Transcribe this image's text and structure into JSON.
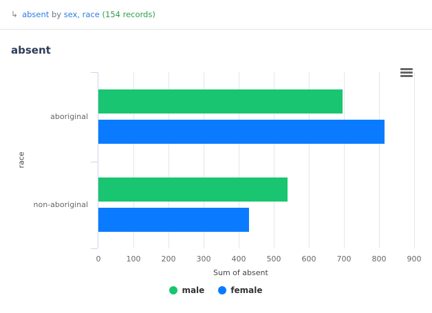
{
  "breadcrumb": {
    "arrow_icon": "return-arrow-icon",
    "measure": "absent",
    "by": "by",
    "dimensions": "sex, race",
    "records": "(154 records)"
  },
  "chart_title": "absent",
  "menu_icon": "hamburger-menu-icon",
  "colors": {
    "male": "#19c570",
    "female": "#0a7bff"
  },
  "chart_data": {
    "type": "bar",
    "orientation": "horizontal",
    "title": "absent",
    "categories": [
      "aboriginal",
      "non-aboriginal"
    ],
    "series": [
      {
        "name": "male",
        "color": "#19c570",
        "values": [
          696,
          540
        ]
      },
      {
        "name": "female",
        "color": "#0a7bff",
        "values": [
          815,
          429
        ]
      }
    ],
    "xlabel": "Sum of absent",
    "ylabel": "race",
    "xlim": [
      0,
      900
    ],
    "xticks": [
      "0",
      "100",
      "200",
      "300",
      "400",
      "500",
      "600",
      "700",
      "800",
      "900"
    ],
    "grid": true,
    "legend_position": "bottom"
  }
}
